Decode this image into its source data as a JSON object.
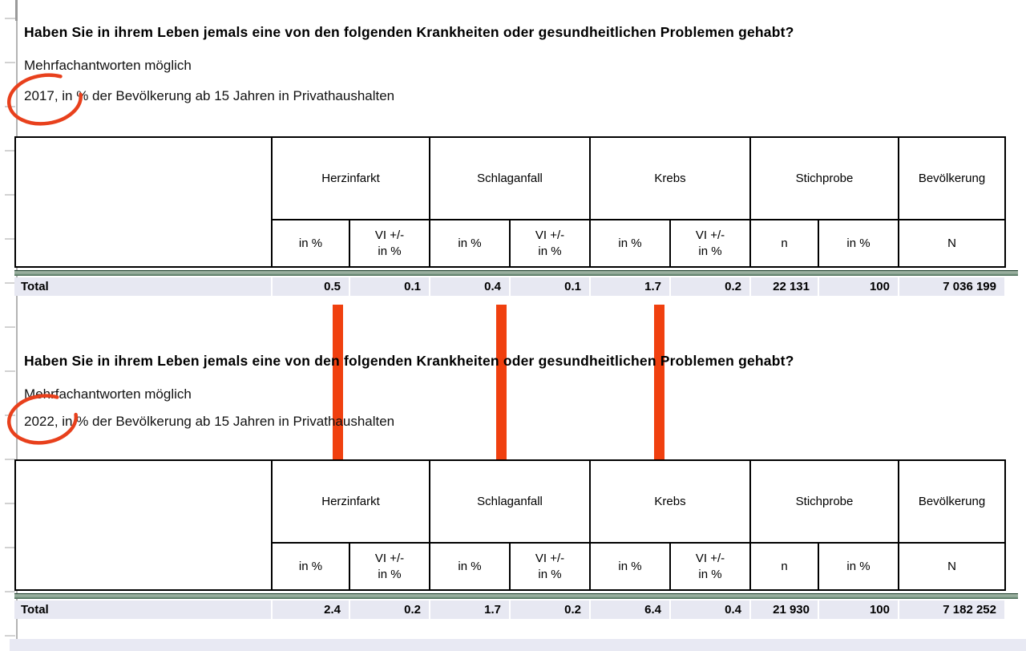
{
  "page": {
    "question_title": "Haben Sie in ihrem Leben jemals eine von den folgenden Krankheiten oder gesundheitlichen Problemen gehabt?",
    "subtitle": "Mehrfachantworten möglich"
  },
  "annotations": {
    "circle_color": "#e8401c",
    "arrow_color": "#f0400f",
    "circled_years": [
      "2017",
      "2022"
    ],
    "arrow_meaning": [
      "Herzinfarkt in %",
      "Schlaganfall in %",
      "Krebs in %"
    ]
  },
  "tables": [
    {
      "year": "2017",
      "year_line": "2017, in % der Bevölkerung ab 15 Jahren in Privathaushalten",
      "groups": [
        "Herzinfarkt",
        "Schlaganfall",
        "Krebs",
        "Stichprobe",
        "Bevölkerung"
      ],
      "subheaders": [
        "in %",
        "VI +/-\nin %",
        "in %",
        "VI +/-\nin %",
        "in %",
        "VI +/-\nin %",
        "n",
        "in %",
        "N"
      ],
      "row_label": "Total",
      "values": [
        "0.5",
        "0.1",
        "0.4",
        "0.1",
        "1.7",
        "0.2",
        "22 131",
        "100",
        "7 036 199"
      ]
    },
    {
      "year": "2022",
      "year_line": "2022, in % der Bevölkerung ab 15 Jahren in Privathaushalten",
      "groups": [
        "Herzinfarkt",
        "Schlaganfall",
        "Krebs",
        "Stichprobe",
        "Bevölkerung"
      ],
      "subheaders": [
        "in %",
        "VI +/-\nin %",
        "in %",
        "VI +/-\nin %",
        "in %",
        "VI +/-\nin %",
        "n",
        "in %",
        "N"
      ],
      "row_label": "Total",
      "values": [
        "2.4",
        "0.2",
        "1.7",
        "0.2",
        "6.4",
        "0.4",
        "21 930",
        "100",
        "7 182 252"
      ]
    }
  ]
}
